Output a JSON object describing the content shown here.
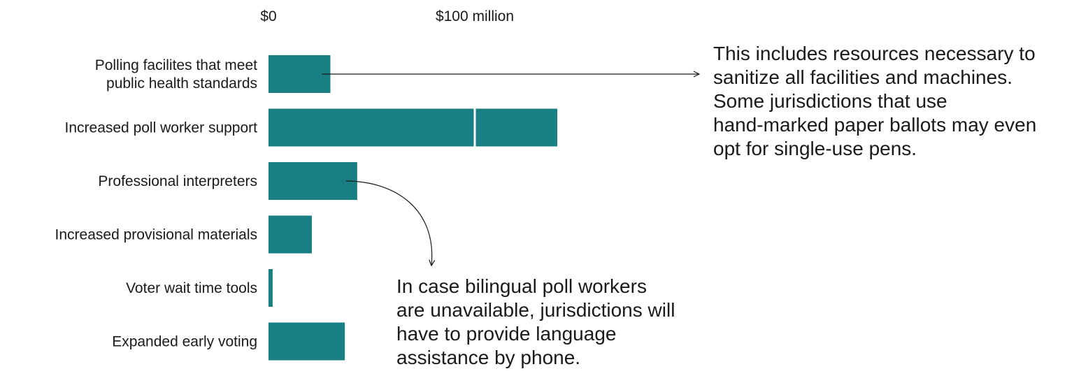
{
  "chart_data": {
    "type": "bar",
    "orientation": "horizontal",
    "title": "",
    "xlabel": "",
    "ylabel": "",
    "currency_prefix": "$",
    "xlim": [
      0,
      141
    ],
    "tick_values": [
      0,
      100
    ],
    "tick_labels": [
      "$0",
      "$100 million"
    ],
    "categories": [
      [
        "Polling facilites that meet",
        "public health standards"
      ],
      [
        "Increased poll worker support"
      ],
      [
        "Professional interpreters"
      ],
      [
        "Increased provisional materials"
      ],
      [
        "Voter wait time tools"
      ],
      [
        "Expanded early voting"
      ]
    ],
    "values": [
      [
        30
      ],
      [
        100,
        40
      ],
      [
        43
      ],
      [
        21
      ],
      [
        2
      ],
      [
        37
      ]
    ],
    "color": "#1a7f85",
    "segment_divider_color": "#ffffff",
    "grid": false,
    "legend": "none"
  },
  "annotations": [
    {
      "lines": [
        "This includes resources necessary to",
        "sanitize all facilities and machines.",
        "Some jurisdictions that use",
        "hand-marked paper ballots may even",
        "opt for single-use pens."
      ],
      "points_to_category": 0
    },
    {
      "lines": [
        "In case bilingual poll workers",
        "are unavailable, jurisdictions will",
        "have to provide language",
        "assistance by phone."
      ],
      "points_to_category": 2
    }
  ]
}
